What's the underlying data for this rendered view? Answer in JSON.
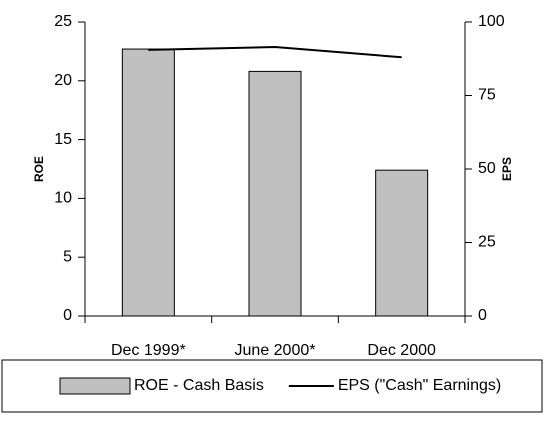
{
  "chart_data": {
    "type": "bar_line",
    "categories": [
      "Dec 1999*",
      "June 2000*",
      "Dec 2000"
    ],
    "series": [
      {
        "name": "ROE - Cash Basis",
        "color": "#c0c0c0",
        "values": [
          22.7,
          20.8,
          12.4
        ]
      },
      {
        "name": "EPS (\"Cash\" Earnings)",
        "color": "#000000",
        "axis": "y2",
        "values": [
          90.5,
          91.5,
          88
        ]
      }
    ],
    "ylabel": "ROE",
    "y2label": "EPS",
    "ylim": [
      0,
      25
    ],
    "yticks": [
      0,
      5,
      10,
      15,
      20,
      25
    ],
    "y2lim": [
      0,
      100
    ],
    "y2ticks": [
      0,
      25,
      50,
      75,
      100
    ],
    "legend": "bottom"
  }
}
